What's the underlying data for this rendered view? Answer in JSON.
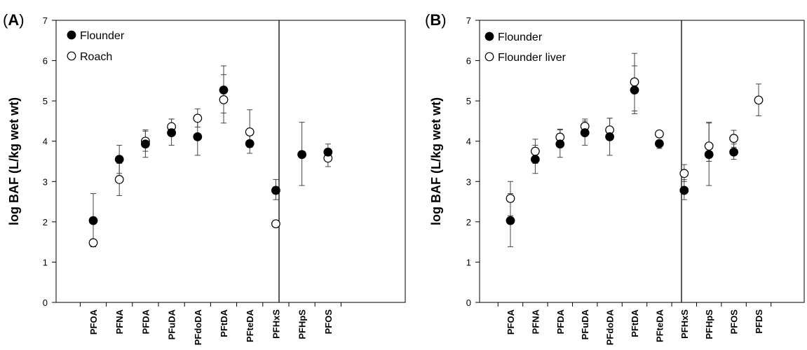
{
  "chart_data": [
    {
      "type": "scatter",
      "panel_label": "(A)",
      "ylabel": "log BAF (L/kg wet wt)",
      "ylim": [
        0,
        7
      ],
      "yticks": [
        0,
        1,
        2,
        3,
        4,
        5,
        6,
        7
      ],
      "categories": [
        "PFOA",
        "PFNA",
        "PFDA",
        "PFuDA",
        "PFdoDA",
        "PFtDA",
        "PFteDA",
        "PFHxS",
        "PFHpS",
        "PFOS"
      ],
      "divider_after": "PFteDA",
      "legend_position": "top-left",
      "series": [
        {
          "name": "Flounder",
          "marker": "filled-circle",
          "color": "#000000",
          "values": [
            2.03,
            3.55,
            3.93,
            4.21,
            4.11,
            5.27,
            3.94,
            2.78,
            3.67,
            3.73
          ],
          "err_low": [
            1.38,
            3.2,
            3.6,
            3.9,
            3.65,
            4.45,
            3.7,
            2.55,
            2.9,
            3.55
          ],
          "err_high": [
            2.7,
            3.9,
            4.28,
            4.55,
            4.6,
            5.65,
            4.15,
            3.05,
            4.47,
            3.93
          ]
        },
        {
          "name": "Roach",
          "marker": "open-circle",
          "color": "#000000",
          "values": [
            1.48,
            3.05,
            4.0,
            4.36,
            4.57,
            5.03,
            4.23,
            1.95,
            null,
            3.58
          ],
          "err_low": [
            1.45,
            2.65,
            3.75,
            4.25,
            4.35,
            4.7,
            3.85,
            null,
            null,
            3.37
          ],
          "err_high": [
            1.52,
            3.45,
            4.25,
            4.55,
            4.8,
            5.87,
            4.78,
            null,
            null,
            3.75
          ]
        }
      ]
    },
    {
      "type": "scatter",
      "panel_label": "(B)",
      "ylabel": "log BAF (L/kg wet wt)",
      "ylim": [
        0,
        7
      ],
      "yticks": [
        0,
        1,
        2,
        3,
        4,
        5,
        6,
        7
      ],
      "categories": [
        "PFOA",
        "PFNA",
        "PFDA",
        "PFuDA",
        "PFdoDA",
        "PFtDA",
        "PFteDA",
        "PFHxS",
        "PFHpS",
        "PFOS",
        "PFDS"
      ],
      "divider_after": "PFteDA",
      "legend_position": "top-left",
      "series": [
        {
          "name": "Flounder",
          "marker": "filled-circle",
          "color": "#000000",
          "values": [
            2.03,
            3.55,
            3.93,
            4.21,
            4.11,
            5.27,
            3.94,
            2.78,
            3.67,
            3.73,
            null
          ],
          "err_low": [
            1.38,
            3.2,
            3.6,
            3.9,
            3.65,
            4.68,
            3.82,
            2.55,
            2.9,
            3.55,
            null
          ],
          "err_high": [
            2.7,
            3.9,
            4.28,
            4.55,
            4.57,
            5.87,
            4.02,
            3.05,
            4.45,
            3.93,
            null
          ]
        },
        {
          "name": "Flounder liver",
          "marker": "open-circle",
          "color": "#000000",
          "values": [
            2.58,
            3.75,
            4.1,
            4.37,
            4.28,
            5.47,
            4.18,
            3.2,
            3.88,
            4.07,
            5.02
          ],
          "err_low": [
            2.15,
            3.45,
            3.9,
            4.22,
            4.1,
            4.75,
            null,
            3.0,
            3.5,
            3.85,
            4.63
          ],
          "err_high": [
            3.0,
            4.05,
            4.3,
            4.5,
            4.57,
            6.18,
            null,
            3.42,
            4.47,
            4.27,
            5.42
          ]
        }
      ]
    }
  ]
}
